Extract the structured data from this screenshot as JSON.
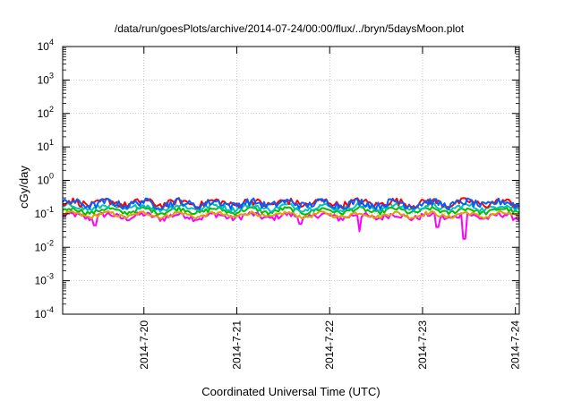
{
  "chart_data": {
    "type": "line",
    "title": "/data/run/goesPlots/archive/2014-07-24/00:00/flux/../bryn/5daysMoon.plot",
    "xlabel": "Coordinated Universal Time (UTC)",
    "ylabel": "cGy/day",
    "x_range": [
      "2014-07-19T03:00",
      "2014-07-24T01:00"
    ],
    "x_ticks": [
      "2014-7-20",
      "2014-7-21",
      "2014-7-22",
      "2014-7-23",
      "2014-7-24"
    ],
    "y_scale": "log",
    "ylim": [
      0.0001,
      10000
    ],
    "y_ticks": [
      {
        "base": "10",
        "exp": "-4"
      },
      {
        "base": "10",
        "exp": "-3"
      },
      {
        "base": "10",
        "exp": "-2"
      },
      {
        "base": "10",
        "exp": "-1"
      },
      {
        "base": "10",
        "exp": "0"
      },
      {
        "base": "10",
        "exp": "1"
      },
      {
        "base": "10",
        "exp": "2"
      },
      {
        "base": "10",
        "exp": "3"
      },
      {
        "base": "10",
        "exp": "4"
      }
    ],
    "grid": true,
    "series": [
      {
        "color": "#ff00ff",
        "level": 0.08,
        "noise": 0.22,
        "dips": [
          [
            0.07,
            0.045
          ],
          [
            0.52,
            0.05
          ],
          [
            0.65,
            0.03
          ],
          [
            0.82,
            0.04
          ],
          [
            0.88,
            0.018
          ]
        ]
      },
      {
        "color": "#e0a000",
        "level": 0.09,
        "noise": 0.14,
        "dips": []
      },
      {
        "color": "#00c000",
        "level": 0.12,
        "noise": 0.15,
        "dips": []
      },
      {
        "color": "#00c0c0",
        "level": 0.15,
        "noise": 0.18,
        "dips": []
      },
      {
        "color": "#ff0000",
        "level": 0.2,
        "noise": 0.25,
        "dips": []
      },
      {
        "color": "#0060ff",
        "level": 0.19,
        "noise": 0.28,
        "dips": []
      }
    ]
  }
}
